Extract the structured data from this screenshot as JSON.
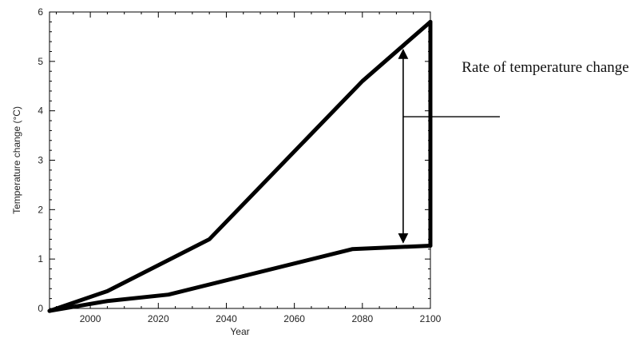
{
  "chart_data": {
    "type": "line",
    "xlabel": "Year",
    "ylabel": "Temperature change (°C)",
    "xlim": [
      1988,
      2100
    ],
    "ylim": [
      0,
      6
    ],
    "x_ticks": [
      2000,
      2020,
      2040,
      2060,
      2080,
      2100
    ],
    "y_ticks": [
      0,
      1,
      2,
      3,
      4,
      5,
      6
    ],
    "series": [
      {
        "x": [
          1988,
          2005,
          2035,
          2080,
          2100
        ],
        "values": [
          -0.05,
          0.35,
          1.4,
          4.6,
          5.8
        ]
      },
      {
        "x": [
          1988,
          2005,
          2023,
          2077,
          2100
        ],
        "values": [
          -0.05,
          0.15,
          0.28,
          1.2,
          1.27
        ]
      }
    ],
    "vertical_segment": {
      "x": 2100,
      "from": 1.27,
      "to": 5.8
    },
    "double_arrow": {
      "x": 2092,
      "from": 1.27,
      "to": 5.3
    },
    "annotation": {
      "text": "Rate of temperature change",
      "pointer_y": 3.88
    }
  }
}
